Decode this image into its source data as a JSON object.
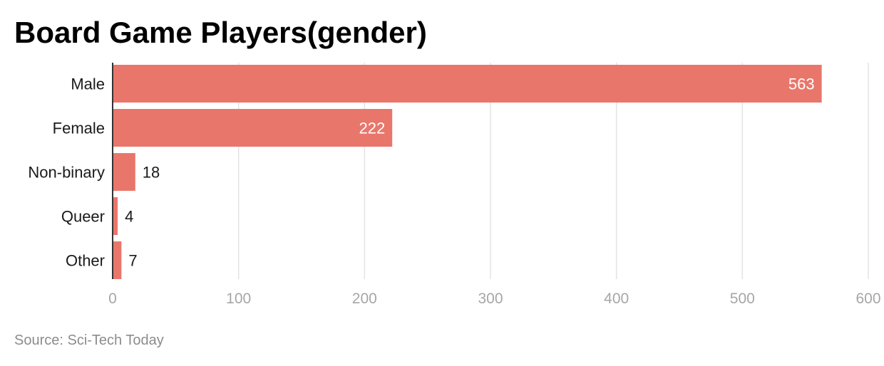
{
  "title": "Board Game Players(gender)",
  "source": "Source: Sci-Tech Today",
  "colors": {
    "bar": "#e9766b",
    "grid": "#e3e3e3",
    "axis": "#333333",
    "label_inside": "#ffffff",
    "label_outside": "#1a1a1a"
  },
  "chart_data": {
    "type": "bar",
    "orientation": "horizontal",
    "title": "Board Game Players(gender)",
    "categories": [
      "Male",
      "Female",
      "Non-binary",
      "Queer",
      "Other"
    ],
    "values": [
      563,
      222,
      18,
      4,
      7
    ],
    "xlim": [
      0,
      600
    ],
    "ticks": [
      0,
      100,
      200,
      300,
      400,
      500,
      600
    ],
    "xlabel": "",
    "ylabel": "",
    "grid": true,
    "legend": "none"
  }
}
